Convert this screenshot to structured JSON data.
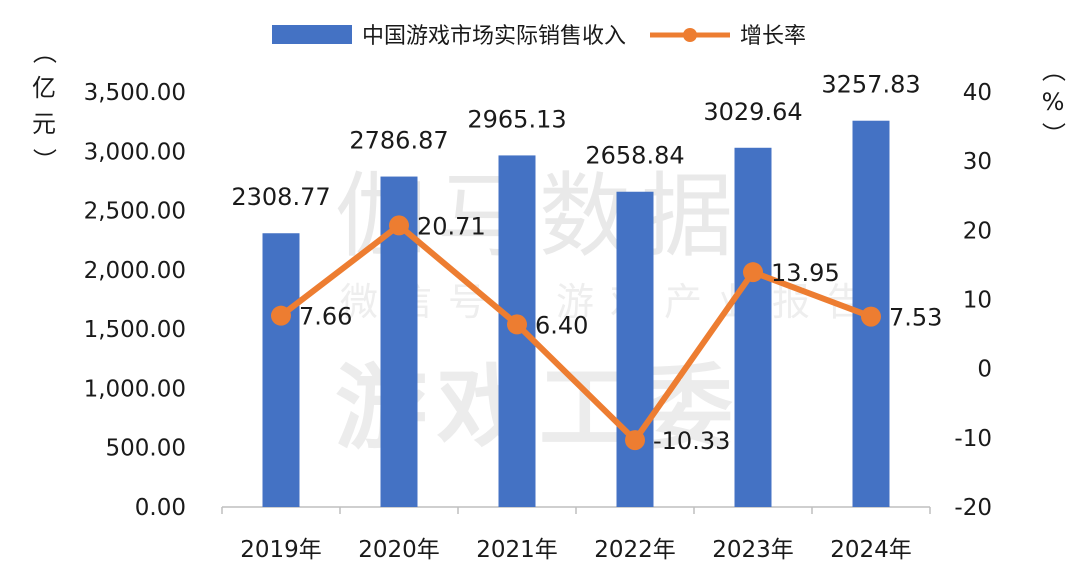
{
  "watermark": {
    "line1": "伽马数据",
    "line2": "微信号：游戏产业报告",
    "line3": "游戏工委"
  },
  "chart_data": {
    "type": "bar",
    "categories": [
      "2019年",
      "2020年",
      "2021年",
      "2022年",
      "2023年",
      "2024年"
    ],
    "series": [
      {
        "name": "中国游戏市场实际销售收入",
        "type": "bar",
        "axis": "left",
        "color": "#4472C4",
        "values": [
          2308.77,
          2786.87,
          2965.13,
          2658.84,
          3029.64,
          3257.83
        ],
        "labels": [
          "2308.77",
          "2786.87",
          "2965.13",
          "2658.84",
          "3029.64",
          "3257.83"
        ]
      },
      {
        "name": "增长率",
        "type": "line",
        "axis": "right",
        "color": "#ED7D31",
        "values": [
          7.66,
          20.71,
          6.4,
          -10.33,
          13.95,
          7.53
        ],
        "labels": [
          "7.66",
          "20.71",
          "6.40",
          "-10.33",
          "13.95",
          "7.53"
        ]
      }
    ],
    "y_left": {
      "label": "（亿元）",
      "ylim": [
        0,
        3500
      ],
      "ticks": [
        0,
        500,
        1000,
        1500,
        2000,
        2500,
        3000,
        3500
      ],
      "tick_labels": [
        "0.00",
        "500.00",
        "1,000.00",
        "1,500.00",
        "2,000.00",
        "2,500.00",
        "3,000.00",
        "3,500.00"
      ]
    },
    "y_right": {
      "label": "（%）",
      "ylim": [
        -20,
        40
      ],
      "ticks": [
        -20,
        -10,
        0,
        10,
        20,
        30,
        40
      ],
      "tick_labels": [
        "-20",
        "-10",
        "0",
        "10",
        "20",
        "30",
        "40"
      ]
    },
    "legend_position": "top",
    "grid": false
  }
}
